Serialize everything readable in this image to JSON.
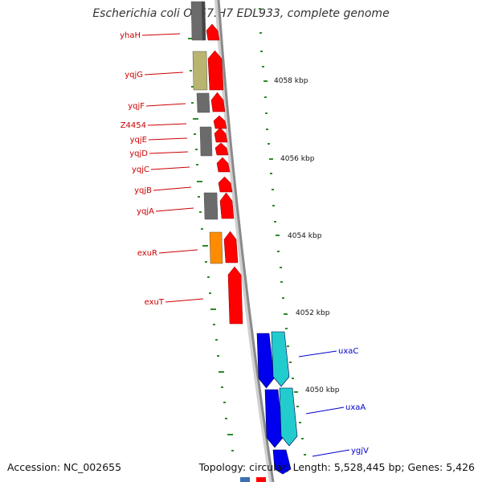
{
  "title": "Escherichia coli O157:H7 EDL933, complete genome",
  "accession": "Accession: NC_002655",
  "topology": "Topology: circular; Length: 5,528,445 bp; Genes: 5,426",
  "colors": {
    "red": "#ff0000",
    "grey": "#6b6b6b",
    "olive": "#b9b46f",
    "orange": "#ff8c00",
    "blue": "#0000ee",
    "cyan": "#22cccc",
    "tick_green": "#2e8b2e",
    "label_red": "#cc0000",
    "label_blue": "#0000cc",
    "backbone": "#888888"
  },
  "scale_ticks": [
    "4058 kbp",
    "4056 kbp",
    "4054 kbp",
    "4052 kbp",
    "4050 kbp"
  ],
  "genes": [
    {
      "name": "yhaH",
      "color": "label_red"
    },
    {
      "name": "yqjG",
      "color": "label_red"
    },
    {
      "name": "yqjF",
      "color": "label_red"
    },
    {
      "name": "Z4454",
      "color": "label_red"
    },
    {
      "name": "yqjE",
      "color": "label_red"
    },
    {
      "name": "yqjD",
      "color": "label_red"
    },
    {
      "name": "yqjC",
      "color": "label_red"
    },
    {
      "name": "yqjB",
      "color": "label_red"
    },
    {
      "name": "yqjA",
      "color": "label_red"
    },
    {
      "name": "exuR",
      "color": "label_red"
    },
    {
      "name": "exuT",
      "color": "label_red"
    },
    {
      "name": "uxaC",
      "color": "label_blue"
    },
    {
      "name": "uxaA",
      "color": "label_blue"
    },
    {
      "name": "ygjV",
      "color": "label_blue"
    }
  ]
}
